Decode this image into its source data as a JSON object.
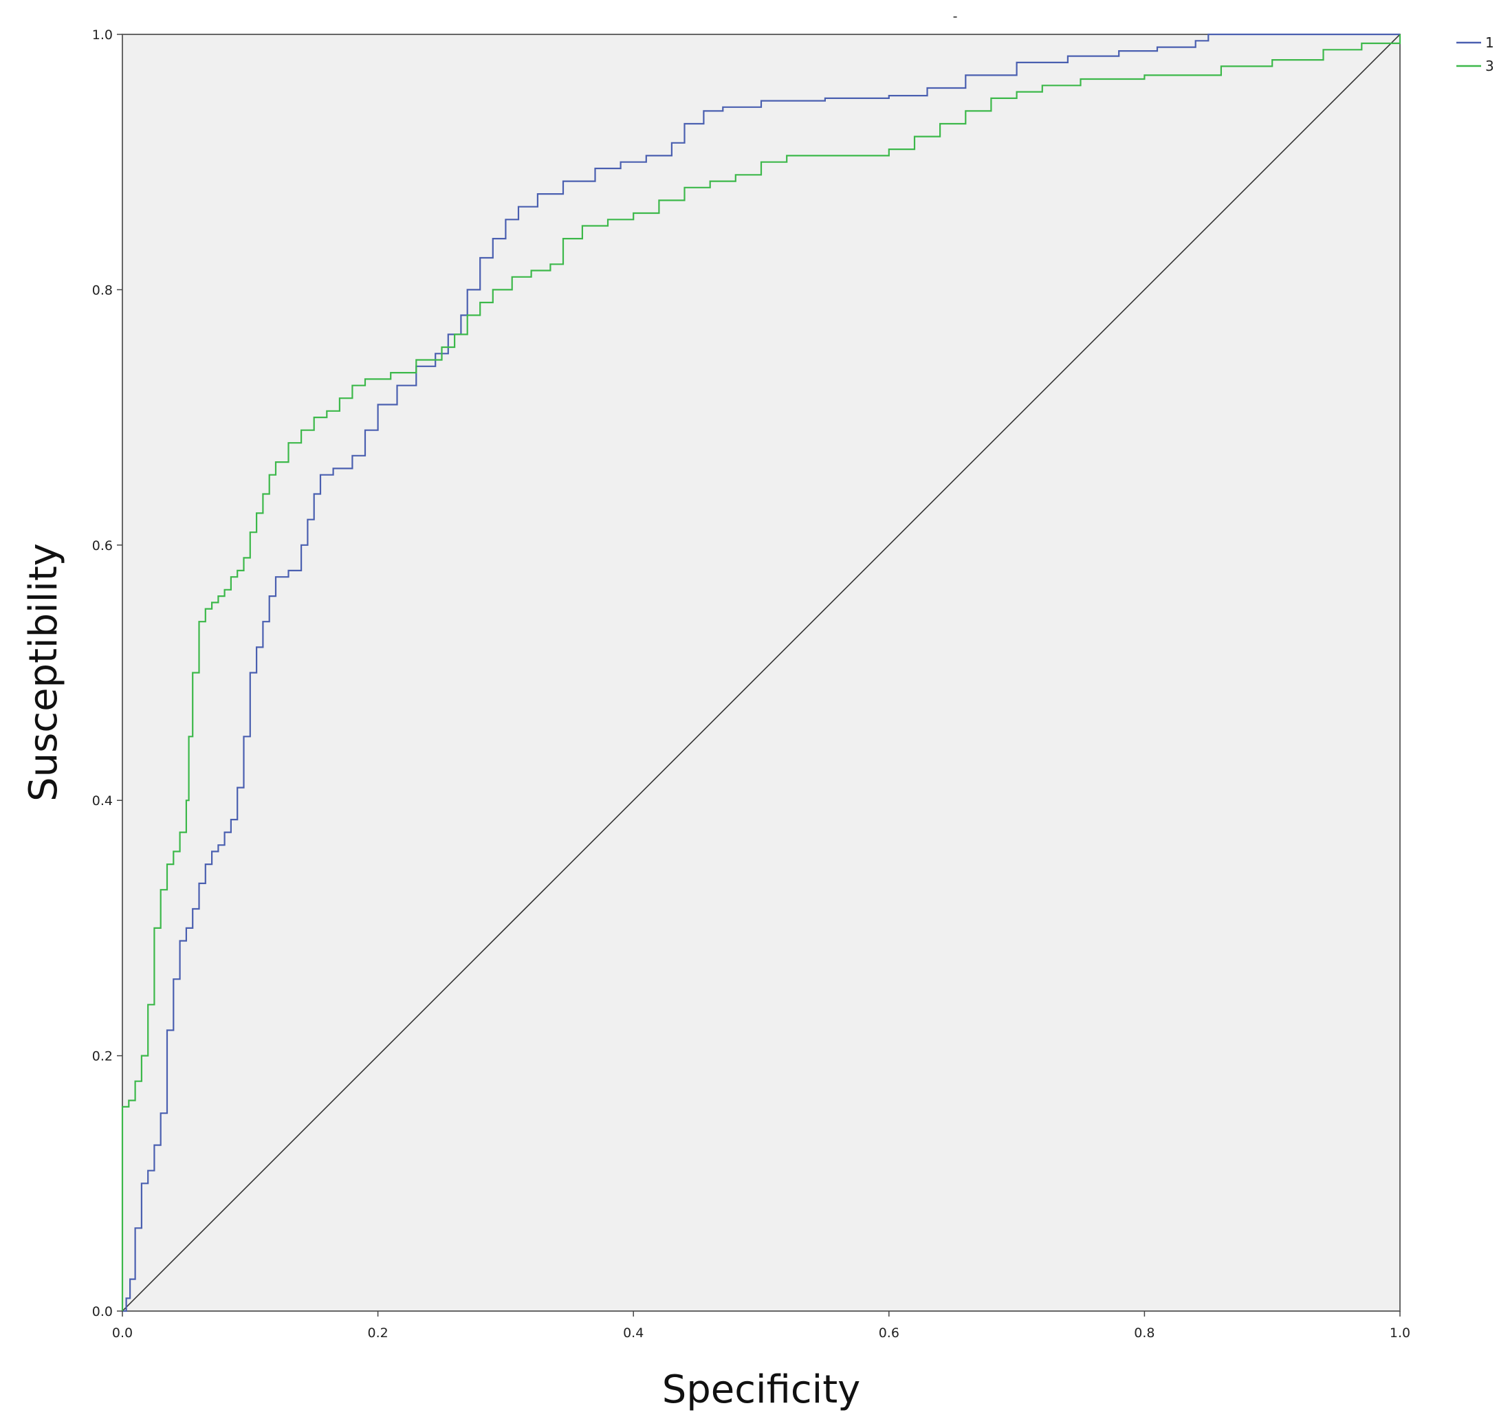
{
  "chart_data": {
    "type": "line",
    "title": "-",
    "xlabel": "Specificity",
    "ylabel": "Susceptibility",
    "xlim": [
      0,
      1
    ],
    "ylim": [
      0,
      1
    ],
    "x_ticks": [
      "0.0",
      "0.2",
      "0.4",
      "0.6",
      "0.8",
      "1.0"
    ],
    "y_ticks": [
      "0.0",
      "0.2",
      "0.4",
      "0.6",
      "0.8",
      "1.0"
    ],
    "grid": false,
    "legend_position": "top-right",
    "background_color": "#f0f0f0",
    "reference_line": {
      "from": [
        0,
        0
      ],
      "to": [
        1,
        1
      ],
      "color": "#333333"
    },
    "series": [
      {
        "name": "1",
        "color": "#4a5fb0",
        "points": [
          [
            0,
            0
          ],
          [
            0.003,
            0.01
          ],
          [
            0.006,
            0.025
          ],
          [
            0.01,
            0.065
          ],
          [
            0.015,
            0.1
          ],
          [
            0.02,
            0.11
          ],
          [
            0.025,
            0.13
          ],
          [
            0.03,
            0.155
          ],
          [
            0.035,
            0.22
          ],
          [
            0.04,
            0.26
          ],
          [
            0.045,
            0.29
          ],
          [
            0.05,
            0.3
          ],
          [
            0.055,
            0.315
          ],
          [
            0.06,
            0.335
          ],
          [
            0.065,
            0.35
          ],
          [
            0.07,
            0.36
          ],
          [
            0.075,
            0.365
          ],
          [
            0.08,
            0.375
          ],
          [
            0.085,
            0.385
          ],
          [
            0.09,
            0.41
          ],
          [
            0.095,
            0.45
          ],
          [
            0.1,
            0.5
          ],
          [
            0.105,
            0.52
          ],
          [
            0.11,
            0.54
          ],
          [
            0.115,
            0.56
          ],
          [
            0.12,
            0.575
          ],
          [
            0.13,
            0.58
          ],
          [
            0.14,
            0.6
          ],
          [
            0.145,
            0.62
          ],
          [
            0.15,
            0.64
          ],
          [
            0.155,
            0.655
          ],
          [
            0.165,
            0.66
          ],
          [
            0.18,
            0.67
          ],
          [
            0.19,
            0.69
          ],
          [
            0.2,
            0.71
          ],
          [
            0.215,
            0.725
          ],
          [
            0.23,
            0.74
          ],
          [
            0.245,
            0.75
          ],
          [
            0.255,
            0.765
          ],
          [
            0.265,
            0.78
          ],
          [
            0.27,
            0.8
          ],
          [
            0.28,
            0.825
          ],
          [
            0.29,
            0.84
          ],
          [
            0.3,
            0.855
          ],
          [
            0.31,
            0.865
          ],
          [
            0.325,
            0.875
          ],
          [
            0.345,
            0.885
          ],
          [
            0.37,
            0.895
          ],
          [
            0.39,
            0.9
          ],
          [
            0.4,
            0.9
          ],
          [
            0.41,
            0.905
          ],
          [
            0.43,
            0.915
          ],
          [
            0.44,
            0.93
          ],
          [
            0.455,
            0.94
          ],
          [
            0.47,
            0.943
          ],
          [
            0.5,
            0.948
          ],
          [
            0.55,
            0.95
          ],
          [
            0.6,
            0.952
          ],
          [
            0.63,
            0.958
          ],
          [
            0.66,
            0.968
          ],
          [
            0.7,
            0.978
          ],
          [
            0.74,
            0.983
          ],
          [
            0.78,
            0.987
          ],
          [
            0.81,
            0.99
          ],
          [
            0.84,
            0.995
          ],
          [
            0.85,
            1.0
          ],
          [
            1.0,
            1.0
          ]
        ]
      },
      {
        "name": "3",
        "color": "#3cb84a",
        "points": [
          [
            0,
            0
          ],
          [
            0,
            0.16
          ],
          [
            0.005,
            0.165
          ],
          [
            0.01,
            0.18
          ],
          [
            0.015,
            0.2
          ],
          [
            0.02,
            0.24
          ],
          [
            0.025,
            0.3
          ],
          [
            0.03,
            0.33
          ],
          [
            0.035,
            0.35
          ],
          [
            0.04,
            0.36
          ],
          [
            0.045,
            0.375
          ],
          [
            0.05,
            0.4
          ],
          [
            0.052,
            0.45
          ],
          [
            0.055,
            0.5
          ],
          [
            0.06,
            0.54
          ],
          [
            0.065,
            0.55
          ],
          [
            0.07,
            0.555
          ],
          [
            0.075,
            0.56
          ],
          [
            0.08,
            0.565
          ],
          [
            0.085,
            0.575
          ],
          [
            0.09,
            0.58
          ],
          [
            0.095,
            0.59
          ],
          [
            0.1,
            0.61
          ],
          [
            0.105,
            0.625
          ],
          [
            0.11,
            0.64
          ],
          [
            0.115,
            0.655
          ],
          [
            0.12,
            0.665
          ],
          [
            0.13,
            0.68
          ],
          [
            0.14,
            0.69
          ],
          [
            0.15,
            0.7
          ],
          [
            0.16,
            0.705
          ],
          [
            0.17,
            0.715
          ],
          [
            0.18,
            0.725
          ],
          [
            0.19,
            0.73
          ],
          [
            0.21,
            0.735
          ],
          [
            0.23,
            0.745
          ],
          [
            0.25,
            0.755
          ],
          [
            0.26,
            0.765
          ],
          [
            0.27,
            0.78
          ],
          [
            0.28,
            0.79
          ],
          [
            0.29,
            0.8
          ],
          [
            0.305,
            0.81
          ],
          [
            0.32,
            0.815
          ],
          [
            0.335,
            0.82
          ],
          [
            0.345,
            0.84
          ],
          [
            0.36,
            0.85
          ],
          [
            0.38,
            0.855
          ],
          [
            0.4,
            0.86
          ],
          [
            0.42,
            0.87
          ],
          [
            0.44,
            0.88
          ],
          [
            0.46,
            0.885
          ],
          [
            0.48,
            0.89
          ],
          [
            0.5,
            0.9
          ],
          [
            0.52,
            0.905
          ],
          [
            0.56,
            0.905
          ],
          [
            0.6,
            0.91
          ],
          [
            0.62,
            0.92
          ],
          [
            0.64,
            0.93
          ],
          [
            0.66,
            0.94
          ],
          [
            0.68,
            0.95
          ],
          [
            0.7,
            0.955
          ],
          [
            0.72,
            0.96
          ],
          [
            0.75,
            0.965
          ],
          [
            0.8,
            0.968
          ],
          [
            0.86,
            0.975
          ],
          [
            0.9,
            0.98
          ],
          [
            0.94,
            0.988
          ],
          [
            0.97,
            0.993
          ],
          [
            1.0,
            1.0
          ]
        ]
      }
    ]
  }
}
